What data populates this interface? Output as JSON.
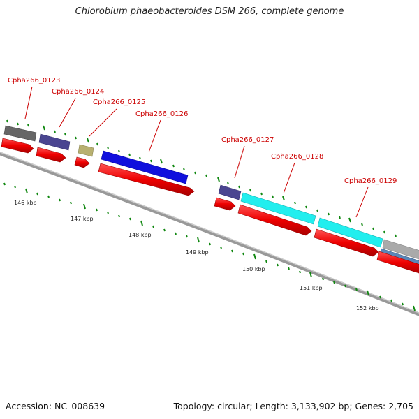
{
  "title": "Chlorobium phaeobacteroides DSM 266, complete genome",
  "footer": {
    "accession": "Accession: NC_008639",
    "topology": "Topology: circular; Length: 3,133,902 bp; Genes: 2,705"
  },
  "colors": {
    "gene_label": "#cc0000",
    "cds_arrow": "#ee0000",
    "backbone": "#888888",
    "tick": "#118811"
  },
  "genes": [
    {
      "id": "Cpha266_0123",
      "label": "Cpha266_0123",
      "color": "#666666"
    },
    {
      "id": "Cpha266_0124",
      "label": "Cpha266_0124",
      "color": "#4a4590"
    },
    {
      "id": "Cpha266_0125",
      "label": "Cpha266_0125",
      "color": "#b8b070"
    },
    {
      "id": "Cpha266_0126",
      "label": "Cpha266_0126",
      "color": "#1010dd"
    },
    {
      "id": "Cpha266_0127",
      "label": "Cpha266_0127",
      "color": "#4a4590"
    },
    {
      "id": "Cpha266_0128",
      "label": "Cpha266_0128",
      "color": "#22eeee"
    },
    {
      "id": "Cpha266_0129",
      "label": "Cpha266_0129",
      "color": "#22eeee"
    }
  ],
  "scale_labels": [
    "146 kbp",
    "147 kbp",
    "148 kbp",
    "149 kbp",
    "150 kbp",
    "151 kbp",
    "152 kbp"
  ]
}
